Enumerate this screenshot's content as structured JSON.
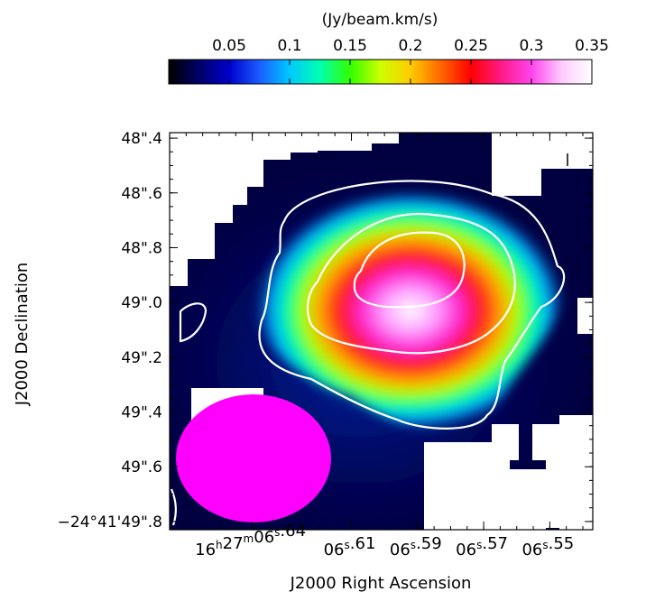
{
  "chart_data": {
    "type": "heatmap",
    "title": "",
    "colorbar": {
      "label": "(Jy/beam.km/s)",
      "range": [
        0.0,
        0.35
      ],
      "ticks": [
        "0.05",
        "0.1",
        "0.15",
        "0.2",
        "0.25",
        "0.3",
        "0.35"
      ],
      "tick_values": [
        0.05,
        0.1,
        0.15,
        0.2,
        0.25,
        0.3,
        0.35
      ],
      "colormap": [
        "#000000",
        "#000066",
        "#0000cc",
        "#1a5cff",
        "#00c8ff",
        "#00ffb0",
        "#33ff00",
        "#ccff00",
        "#ffcc00",
        "#ff6600",
        "#ff0000",
        "#ff1a88",
        "#ff44ee",
        "#ffccff",
        "#ffffff"
      ]
    },
    "xlabel": "J2000 Right Ascension",
    "ylabel": "J2000 Declination",
    "x_ticks": [
      {
        "value": 6.64,
        "h": "16",
        "m": "27",
        "s": "06",
        "frac": ".64"
      },
      {
        "value": 6.61,
        "s": "06",
        "frac": ".61"
      },
      {
        "value": 6.59,
        "s": "06",
        "frac": ".59"
      },
      {
        "value": 6.57,
        "s": "06",
        "frac": ".57"
      },
      {
        "value": 6.55,
        "s": "06",
        "frac": ".55"
      }
    ],
    "x_range": [
      6.665,
      6.537
    ],
    "y_ticks": [
      {
        "value": 48.4,
        "label": "48\".4"
      },
      {
        "value": 48.6,
        "label": "48\".6"
      },
      {
        "value": 48.8,
        "label": "48\".8"
      },
      {
        "value": 49.0,
        "label": "49\".0"
      },
      {
        "value": 49.2,
        "label": "49\".2"
      },
      {
        "value": 49.4,
        "label": "49\".4"
      },
      {
        "value": 49.6,
        "label": "49\".6"
      },
      {
        "value": 49.8,
        "label": "−24°41'49\".8"
      }
    ],
    "y_range": [
      48.38,
      49.83
    ],
    "peak": {
      "ra": 6.584,
      "dec": 48.86,
      "value": 0.35
    },
    "contour_levels": [
      0.05,
      0.15,
      0.25
    ],
    "beam": {
      "ra": 6.63,
      "dec": 49.57,
      "color": "#ff00ff"
    },
    "colors": {
      "contour": "#ffffff",
      "beam": "#ff00ff",
      "blank": "#ffffff"
    }
  }
}
